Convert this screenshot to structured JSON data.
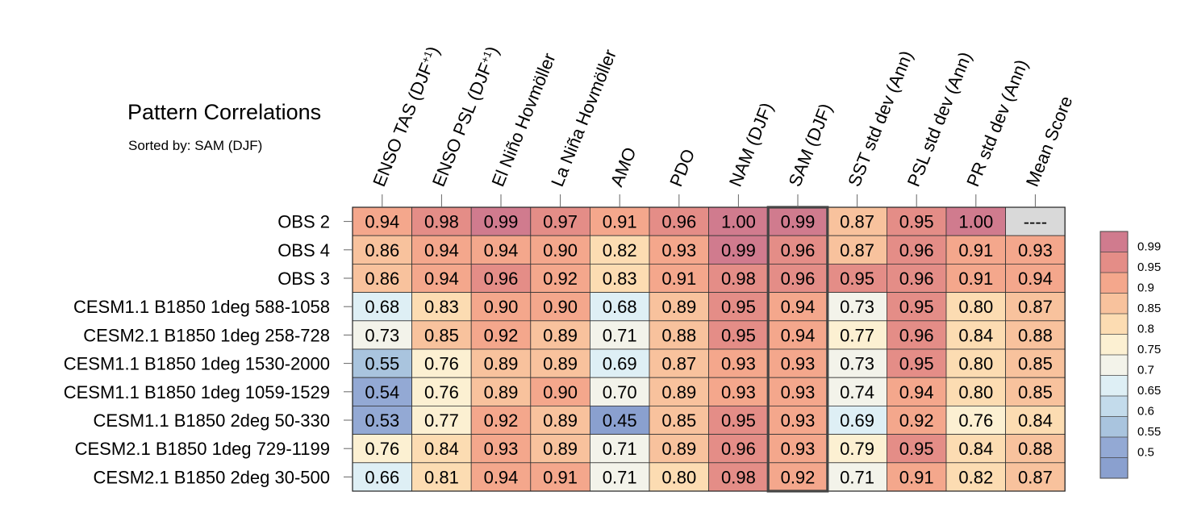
{
  "chart_data": {
    "type": "heatmap",
    "title": "Pattern Correlations",
    "subtitle": "Sorted by: SAM (DJF)",
    "sorted_by": "SAM (DJF)",
    "columns": [
      {
        "base": "ENSO TAS (DJF",
        "sup": "+1",
        "tail": ")"
      },
      {
        "base": "ENSO PSL (DJF",
        "sup": "+1",
        "tail": ")"
      },
      {
        "base": "El Niño Hovmöller",
        "sup": "",
        "tail": ""
      },
      {
        "base": "La Niña Hovmöller",
        "sup": "",
        "tail": ""
      },
      {
        "base": "AMO",
        "sup": "",
        "tail": ""
      },
      {
        "base": "PDO",
        "sup": "",
        "tail": ""
      },
      {
        "base": "NAM (DJF)",
        "sup": "",
        "tail": ""
      },
      {
        "base": "SAM (DJF)",
        "sup": "",
        "tail": ""
      },
      {
        "base": "SST std dev (Ann)",
        "sup": "",
        "tail": ""
      },
      {
        "base": "PSL std dev (Ann)",
        "sup": "",
        "tail": ""
      },
      {
        "base": "PR std dev (Ann)",
        "sup": "",
        "tail": ""
      },
      {
        "base": "Mean Score",
        "sup": "",
        "tail": ""
      }
    ],
    "rows": [
      "OBS 2",
      "OBS 4",
      "OBS 3",
      "CESM1.1 B1850 1deg 588-1058",
      "CESM2.1 B1850 1deg 258-728",
      "CESM1.1 B1850 1deg 1530-2000",
      "CESM1.1 B1850 1deg 1059-1529",
      "CESM1.1 B1850 2deg 50-330",
      "CESM2.1 B1850 1deg 729-1199",
      "CESM2.1 B1850 2deg 30-500"
    ],
    "values": [
      [
        "0.94",
        "0.98",
        "0.99",
        "0.97",
        "0.91",
        "0.96",
        "1.00",
        "0.99",
        "0.87",
        "0.95",
        "1.00",
        "----"
      ],
      [
        "0.86",
        "0.94",
        "0.94",
        "0.90",
        "0.82",
        "0.93",
        "0.99",
        "0.96",
        "0.87",
        "0.96",
        "0.91",
        "0.93"
      ],
      [
        "0.86",
        "0.94",
        "0.96",
        "0.92",
        "0.83",
        "0.91",
        "0.98",
        "0.96",
        "0.95",
        "0.96",
        "0.91",
        "0.94"
      ],
      [
        "0.68",
        "0.83",
        "0.90",
        "0.90",
        "0.68",
        "0.89",
        "0.95",
        "0.94",
        "0.73",
        "0.95",
        "0.80",
        "0.87"
      ],
      [
        "0.73",
        "0.85",
        "0.92",
        "0.89",
        "0.71",
        "0.88",
        "0.95",
        "0.94",
        "0.77",
        "0.96",
        "0.84",
        "0.88"
      ],
      [
        "0.55",
        "0.76",
        "0.89",
        "0.89",
        "0.69",
        "0.87",
        "0.93",
        "0.93",
        "0.73",
        "0.95",
        "0.80",
        "0.85"
      ],
      [
        "0.54",
        "0.76",
        "0.89",
        "0.90",
        "0.70",
        "0.89",
        "0.93",
        "0.93",
        "0.74",
        "0.94",
        "0.80",
        "0.85"
      ],
      [
        "0.53",
        "0.77",
        "0.92",
        "0.89",
        "0.45",
        "0.85",
        "0.95",
        "0.93",
        "0.69",
        "0.92",
        "0.76",
        "0.84"
      ],
      [
        "0.76",
        "0.84",
        "0.93",
        "0.89",
        "0.71",
        "0.89",
        "0.96",
        "0.93",
        "0.79",
        "0.95",
        "0.84",
        "0.88"
      ],
      [
        "0.66",
        "0.81",
        "0.94",
        "0.91",
        "0.71",
        "0.80",
        "0.98",
        "0.92",
        "0.71",
        "0.91",
        "0.82",
        "0.87"
      ]
    ],
    "colorbar": {
      "levels": [
        "0.99",
        "0.95",
        "0.9",
        "0.85",
        "0.8",
        "0.75",
        "0.7",
        "0.65",
        "0.6",
        "0.55",
        "0.5"
      ],
      "bins_top_to_bottom": [
        "#d07b8e",
        "#e48d87",
        "#f4a78c",
        "#f8c29d",
        "#fcdcb2",
        "#fcf0d2",
        "#f3f3ea",
        "#deeff5",
        "#c3dbeb",
        "#a9c4de",
        "#93a9d4",
        "#8aa0cf"
      ],
      "missing_color": "#d9d9d9"
    }
  }
}
